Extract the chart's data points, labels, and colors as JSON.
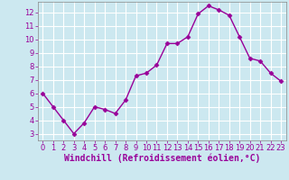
{
  "x": [
    0,
    1,
    2,
    3,
    4,
    5,
    6,
    7,
    8,
    9,
    10,
    11,
    12,
    13,
    14,
    15,
    16,
    17,
    18,
    19,
    20,
    21,
    22,
    23
  ],
  "y": [
    6.0,
    5.0,
    4.0,
    3.0,
    3.8,
    5.0,
    4.8,
    4.5,
    5.5,
    7.3,
    7.5,
    8.1,
    9.7,
    9.7,
    10.2,
    11.9,
    12.5,
    12.2,
    11.8,
    10.2,
    8.6,
    8.4,
    7.5,
    6.9
  ],
  "line_color": "#990099",
  "marker": "D",
  "marker_size": 2.5,
  "bg_color": "#cce8f0",
  "grid_color": "#ffffff",
  "xlabel": "Windchill (Refroidissement éolien,°C)",
  "xlabel_color": "#990099",
  "xlim": [
    -0.5,
    23.5
  ],
  "ylim": [
    2.5,
    12.8
  ],
  "yticks": [
    3,
    4,
    5,
    6,
    7,
    8,
    9,
    10,
    11,
    12
  ],
  "xticks": [
    0,
    1,
    2,
    3,
    4,
    5,
    6,
    7,
    8,
    9,
    10,
    11,
    12,
    13,
    14,
    15,
    16,
    17,
    18,
    19,
    20,
    21,
    22,
    23
  ],
  "tick_label_size": 6,
  "xlabel_fontsize": 7,
  "line_width": 1.0,
  "spine_color": "#888888"
}
